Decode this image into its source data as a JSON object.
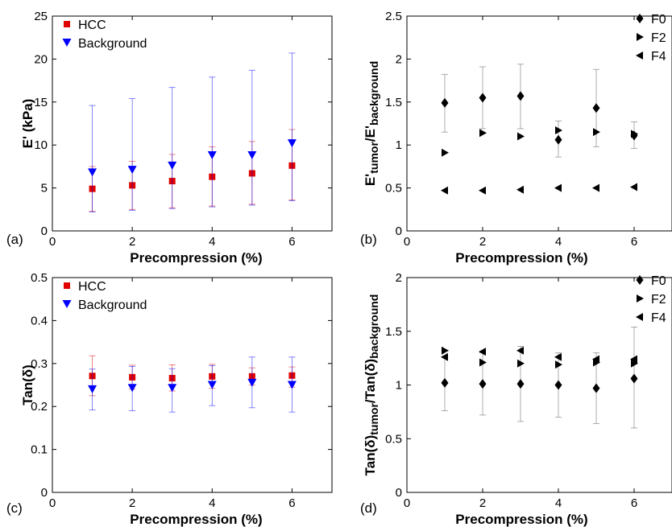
{
  "colors": {
    "hcc": "#e00000",
    "background": "#0000ff",
    "fibrosis": "#000000",
    "errorbar_fibrosis": "#555555"
  },
  "chart_data": [
    {
      "panel": "(a)",
      "type": "scatter",
      "xlabel": "Precompression (%)",
      "ylabel": "E' (kPa)",
      "xlim": [
        0,
        7
      ],
      "ylim": [
        0,
        25
      ],
      "xticks": [
        "0",
        "2",
        "4",
        "6"
      ],
      "yticks": [
        "0",
        "5",
        "10",
        "15",
        "20",
        "25"
      ],
      "legend_position": "top-left",
      "series": [
        {
          "name": "HCC",
          "marker": "square",
          "color": "#e00000",
          "x": [
            1,
            2,
            3,
            4,
            5,
            6
          ],
          "y": [
            4.9,
            5.3,
            5.8,
            6.3,
            6.7,
            7.6
          ],
          "err_low": [
            2.3,
            2.5,
            2.7,
            2.9,
            3.1,
            3.6
          ],
          "err_high": [
            7.5,
            8.1,
            8.9,
            9.8,
            10.4,
            11.8
          ]
        },
        {
          "name": "Background",
          "marker": "triangle-down",
          "color": "#0000ff",
          "x": [
            1,
            2,
            3,
            4,
            5,
            6
          ],
          "y": [
            6.8,
            7.1,
            7.6,
            8.8,
            8.8,
            10.2
          ],
          "err_low": [
            2.2,
            2.4,
            2.6,
            2.8,
            3.0,
            3.5
          ],
          "err_high": [
            14.6,
            15.4,
            16.7,
            17.9,
            18.7,
            20.7
          ]
        }
      ]
    },
    {
      "panel": "(b)",
      "type": "scatter",
      "xlabel": "Precompression (%)",
      "ylabel": "E'tumor/E'background",
      "ylabel_main": "E'",
      "ylabel_sub1": "tumor",
      "ylabel_mid": "/E'",
      "ylabel_sub2": "background",
      "xlim": [
        0,
        7
      ],
      "ylim": [
        0,
        2.5
      ],
      "xticks": [
        "0",
        "2",
        "4",
        "6"
      ],
      "yticks": [
        "0",
        "0.5",
        "1",
        "1.5",
        "2",
        "2.5"
      ],
      "legend_position": "top-right",
      "series": [
        {
          "name": "F0",
          "marker": "diamond",
          "x": [
            1,
            2,
            3,
            4,
            5,
            6
          ],
          "y": [
            1.49,
            1.55,
            1.57,
            1.06,
            1.43,
            1.11
          ],
          "err_low": [
            1.15,
            1.19,
            1.19,
            0.86,
            0.98,
            0.96
          ],
          "err_high": [
            1.82,
            1.91,
            1.94,
            1.28,
            1.88,
            1.27
          ]
        },
        {
          "name": "F2",
          "marker": "triangle-right",
          "x": [
            1,
            2,
            3,
            4,
            5,
            6
          ],
          "y": [
            0.91,
            1.14,
            1.1,
            1.17,
            1.15,
            1.13
          ]
        },
        {
          "name": "F4",
          "marker": "triangle-left",
          "x": [
            1,
            2,
            3,
            4,
            5,
            6
          ],
          "y": [
            0.47,
            0.47,
            0.48,
            0.5,
            0.5,
            0.51
          ]
        }
      ]
    },
    {
      "panel": "(c)",
      "type": "scatter",
      "xlabel": "Precompression (%)",
      "ylabel": "Tan(δ)",
      "xlim": [
        0,
        7
      ],
      "ylim": [
        0,
        0.5
      ],
      "xticks": [
        "0",
        "2",
        "4",
        "6"
      ],
      "yticks": [
        "0",
        "0.1",
        "0.2",
        "0.3",
        "0.4",
        "0.5"
      ],
      "legend_position": "top-left",
      "series": [
        {
          "name": "HCC",
          "marker": "square",
          "color": "#e00000",
          "x": [
            1,
            2,
            3,
            4,
            5,
            6
          ],
          "y": [
            0.271,
            0.268,
            0.266,
            0.27,
            0.27,
            0.272
          ],
          "err_low": [
            0.225,
            0.24,
            0.236,
            0.242,
            0.25,
            0.245
          ],
          "err_high": [
            0.318,
            0.296,
            0.297,
            0.298,
            0.29,
            0.292
          ]
        },
        {
          "name": "Background",
          "marker": "triangle-down",
          "color": "#0000ff",
          "x": [
            1,
            2,
            3,
            4,
            5,
            6
          ],
          "y": [
            0.24,
            0.243,
            0.243,
            0.25,
            0.255,
            0.25
          ],
          "err_low": [
            0.192,
            0.19,
            0.187,
            0.202,
            0.197,
            0.187
          ],
          "err_high": [
            0.287,
            0.293,
            0.288,
            0.295,
            0.315,
            0.315
          ]
        }
      ]
    },
    {
      "panel": "(d)",
      "type": "scatter",
      "xlabel": "Precompression (%)",
      "ylabel": "Tan(δ)tumor/Tan(δ)background",
      "ylabel_main": "Tan(δ)",
      "ylabel_sub1": "tumor",
      "ylabel_mid": "/Tan(δ)",
      "ylabel_sub2": "background",
      "xlim": [
        0,
        7
      ],
      "ylim": [
        0,
        2
      ],
      "xticks": [
        "0",
        "2",
        "4",
        "6"
      ],
      "yticks": [
        "0",
        "0.5",
        "1",
        "1.5",
        "2"
      ],
      "legend_position": "top-right",
      "series": [
        {
          "name": "F0",
          "marker": "diamond",
          "x": [
            1,
            2,
            3,
            4,
            5,
            6
          ],
          "y": [
            1.02,
            1.01,
            1.01,
            1.0,
            0.97,
            1.06
          ],
          "err_low": [
            0.76,
            0.72,
            0.66,
            0.7,
            0.64,
            0.6
          ],
          "err_high": [
            1.26,
            1.3,
            1.36,
            1.3,
            1.3,
            1.54
          ]
        },
        {
          "name": "F2",
          "marker": "triangle-right",
          "x": [
            1,
            2,
            3,
            4,
            5,
            6
          ],
          "y": [
            1.32,
            1.21,
            1.2,
            1.19,
            1.21,
            1.2
          ]
        },
        {
          "name": "F4",
          "marker": "triangle-left",
          "x": [
            1,
            2,
            3,
            4,
            5,
            6
          ],
          "y": [
            1.26,
            1.31,
            1.32,
            1.26,
            1.24,
            1.24
          ]
        }
      ]
    }
  ]
}
